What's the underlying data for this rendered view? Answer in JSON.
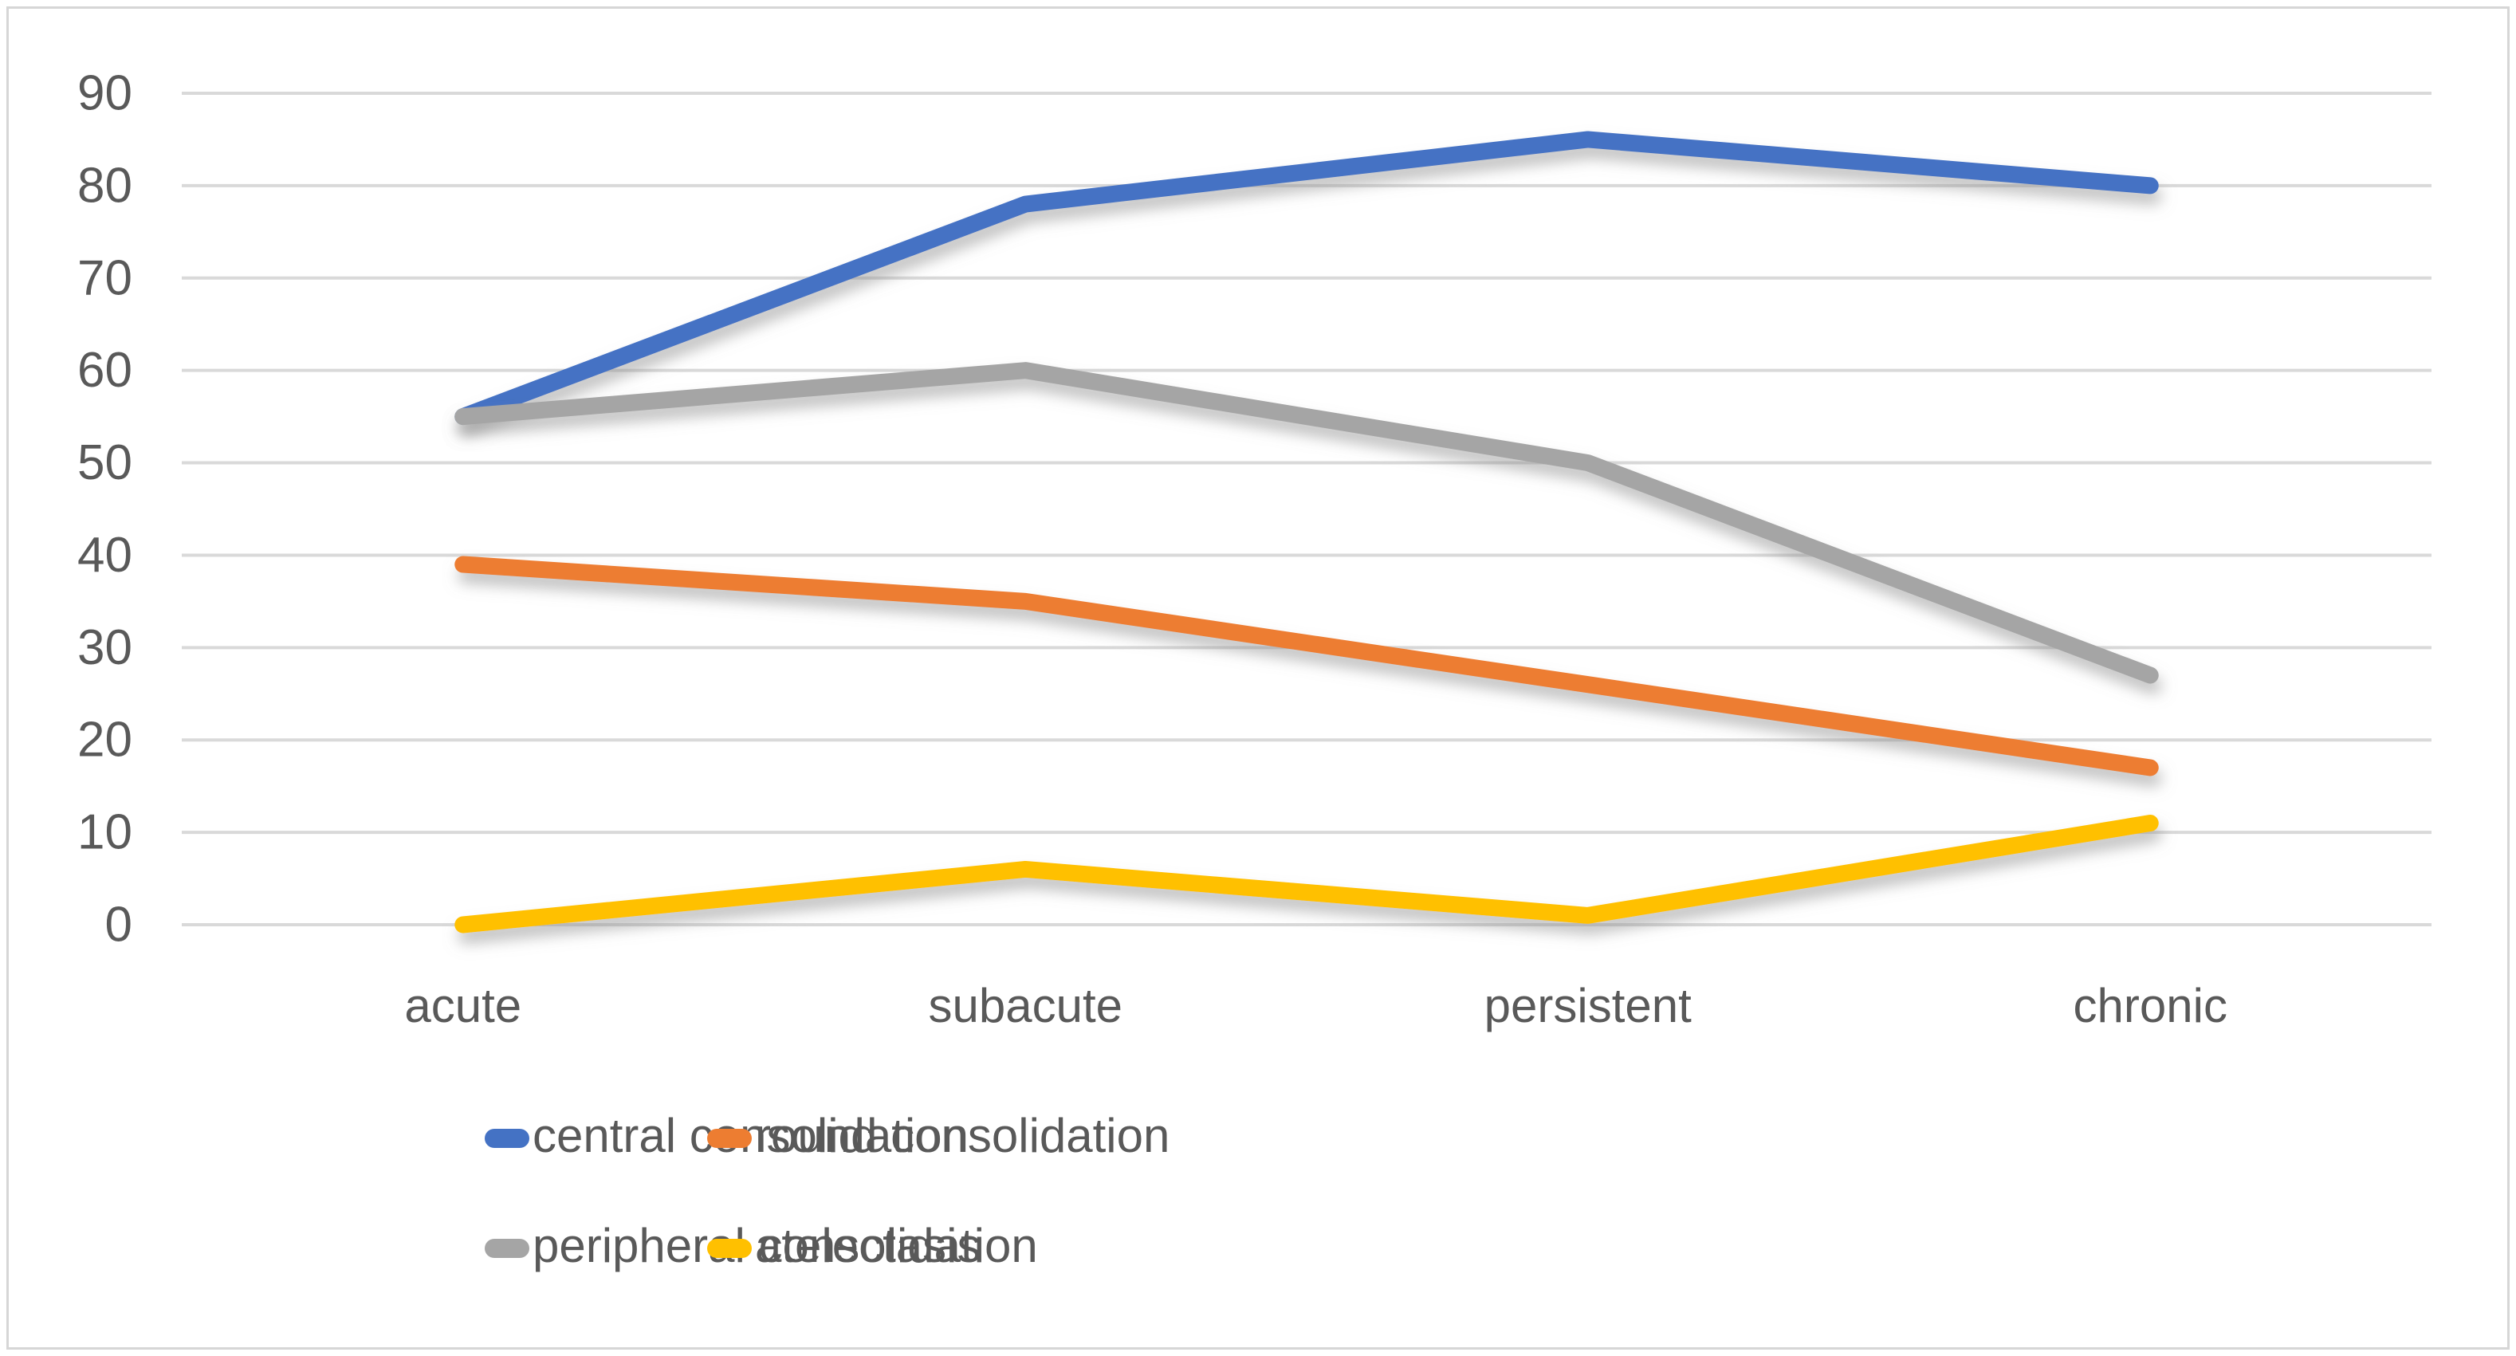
{
  "chart_data": {
    "type": "line",
    "title": "",
    "xlabel": "",
    "ylabel": "",
    "categories": [
      "acute",
      "subacute",
      "persistent",
      "chronic"
    ],
    "series": [
      {
        "name": "central consolidation",
        "color": "#4472C4",
        "values": [
          55,
          78,
          85,
          80
        ]
      },
      {
        "name": "round consolidation",
        "color": "#ED7D31",
        "values": [
          39,
          35,
          26,
          17
        ]
      },
      {
        "name": "peripheral consolidation",
        "color": "#A5A5A5",
        "values": [
          55,
          60,
          50,
          27
        ]
      },
      {
        "name": "atelectasis",
        "color": "#FFC000",
        "values": [
          0,
          6,
          1,
          11
        ]
      }
    ],
    "y_ticks": [
      0,
      10,
      20,
      30,
      40,
      50,
      60,
      70,
      80,
      90
    ],
    "ylim": [
      0,
      90
    ],
    "grid": true,
    "legend_position": "bottom",
    "legend_rows": [
      [
        "central consolidation",
        "round consolidation"
      ],
      [
        "peripheral consolidation",
        "atelectasis"
      ]
    ]
  },
  "colors": {
    "background": "#FFFFFF",
    "grid": "#D9D9D9",
    "text": "#595959",
    "border": "#D6D6D6"
  }
}
